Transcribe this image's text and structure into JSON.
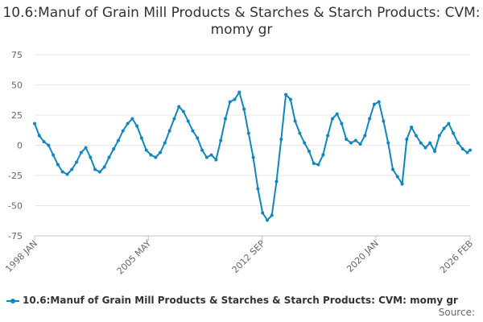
{
  "chart_data": {
    "type": "line",
    "title": "10.6:Manuf of Grain Mill Products & Starches & Starch Products: CVM: momy gr",
    "xlabel": "",
    "ylabel": "",
    "ylim": [
      -75,
      75
    ],
    "y_ticks": [
      75,
      50,
      25,
      0,
      -25,
      -50,
      -75
    ],
    "x_ticks": [
      {
        "label": "1998 JAN",
        "t": 1998.0
      },
      {
        "label": "2005 MAY",
        "t": 2005.333
      },
      {
        "label": "2012 SEP",
        "t": 2012.667
      },
      {
        "label": "2020 JAN",
        "t": 2020.0
      },
      {
        "label": "2026 FEB",
        "t": 2026.083
      }
    ],
    "x_range": [
      1998.0,
      2026.083
    ],
    "grid": true,
    "legend_position": "bottom-left",
    "series": [
      {
        "name": "10.6:Manuf of Grain Mill Products & Starches & Starch Products: CVM: momy gr",
        "color": "#0e86c1",
        "x": [
          1998.0,
          1998.3,
          1998.6,
          1998.9,
          1999.2,
          1999.5,
          1999.8,
          2000.1,
          2000.4,
          2000.7,
          2001.0,
          2001.3,
          2001.6,
          2001.9,
          2002.2,
          2002.5,
          2002.8,
          2003.1,
          2003.4,
          2003.7,
          2004.0,
          2004.3,
          2004.6,
          2004.9,
          2005.2,
          2005.5,
          2005.8,
          2006.1,
          2006.4,
          2006.7,
          2007.0,
          2007.3,
          2007.6,
          2007.9,
          2008.2,
          2008.5,
          2008.8,
          2009.1,
          2009.4,
          2009.7,
          2010.0,
          2010.3,
          2010.6,
          2010.9,
          2011.2,
          2011.5,
          2011.8,
          2012.1,
          2012.4,
          2012.7,
          2013.0,
          2013.3,
          2013.6,
          2013.9,
          2014.2,
          2014.5,
          2014.8,
          2015.1,
          2015.4,
          2015.7,
          2016.0,
          2016.3,
          2016.6,
          2016.9,
          2017.2,
          2017.5,
          2017.8,
          2018.1,
          2018.4,
          2018.7,
          2019.0,
          2019.3,
          2019.6,
          2019.9,
          2020.2,
          2020.5,
          2020.8,
          2021.1,
          2021.4,
          2021.7,
          2022.0,
          2022.3,
          2022.6,
          2022.9,
          2023.2,
          2023.5,
          2023.8,
          2024.1,
          2024.4,
          2024.7,
          2025.0,
          2025.3,
          2025.6,
          2025.9,
          2026.083
        ],
        "values": [
          18,
          8,
          3,
          0,
          -8,
          -16,
          -22,
          -24,
          -20,
          -14,
          -6,
          -2,
          -10,
          -20,
          -22,
          -18,
          -10,
          -3,
          4,
          12,
          18,
          22,
          16,
          6,
          -4,
          -8,
          -10,
          -6,
          2,
          12,
          22,
          32,
          28,
          20,
          12,
          6,
          -4,
          -10,
          -8,
          -12,
          4,
          22,
          36,
          38,
          44,
          30,
          10,
          -10,
          -36,
          -56,
          -62,
          -58,
          -30,
          5,
          42,
          38,
          20,
          10,
          2,
          -5,
          -15,
          -16,
          -8,
          8,
          22,
          26,
          18,
          5,
          2,
          4,
          1,
          8,
          22,
          34,
          36,
          20,
          2,
          -20,
          -26,
          -32,
          5,
          15,
          8,
          2,
          -2,
          2,
          -5,
          8,
          14,
          18,
          10,
          2,
          -3,
          -6,
          -4
        ]
      }
    ]
  },
  "legend": {
    "label": "10.6:Manuf of Grain Mill Products & Starches & Starch Products: CVM: momy gr"
  },
  "source": {
    "label": "Source:"
  }
}
